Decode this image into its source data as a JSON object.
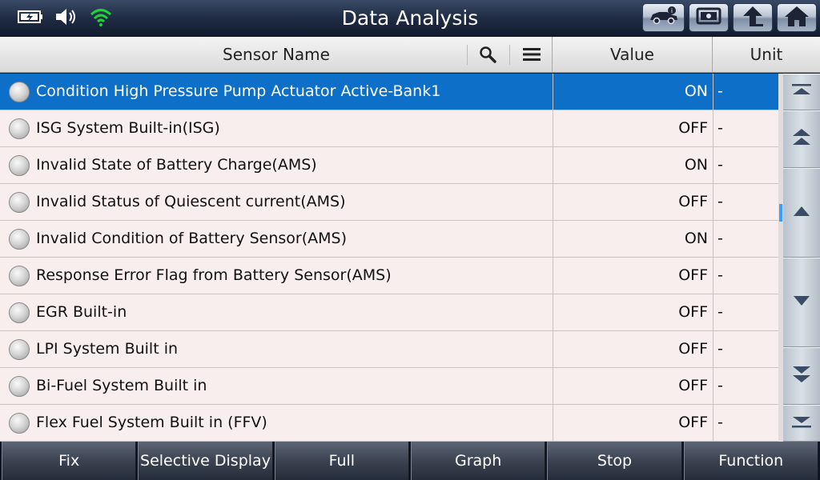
{
  "title": "Data Analysis",
  "status_icons": [
    "battery-icon",
    "speaker-icon",
    "wifi-icon"
  ],
  "nav_buttons": [
    "vehicle-info-icon",
    "screenshot-icon",
    "back-icon",
    "home-icon"
  ],
  "columns": {
    "name": "Sensor Name",
    "value": "Value",
    "unit": "Unit"
  },
  "rows": [
    {
      "name": "Condition High Pressure Pump Actuator Active-Bank1",
      "value": "ON",
      "unit": "-",
      "selected": true
    },
    {
      "name": "ISG System Built-in(ISG)",
      "value": "OFF",
      "unit": "-"
    },
    {
      "name": "Invalid State of Battery Charge(AMS)",
      "value": "ON",
      "unit": "-"
    },
    {
      "name": "Invalid Status of Quiescent current(AMS)",
      "value": "OFF",
      "unit": "-"
    },
    {
      "name": "Invalid Condition of Battery Sensor(AMS)",
      "value": "ON",
      "unit": "-"
    },
    {
      "name": "Response Error Flag from Battery Sensor(AMS)",
      "value": "OFF",
      "unit": "-"
    },
    {
      "name": "EGR Built-in",
      "value": "OFF",
      "unit": "-"
    },
    {
      "name": "LPI System Built in",
      "value": "OFF",
      "unit": "-"
    },
    {
      "name": "Bi-Fuel System Built in",
      "value": "OFF",
      "unit": "-"
    },
    {
      "name": "Flex Fuel System Built in (FFV)",
      "value": "OFF",
      "unit": "-"
    }
  ],
  "toolbar": {
    "fix": "Fix",
    "selective_display": "Selective Display",
    "full": "Full",
    "graph": "Graph",
    "stop": "Stop",
    "function": "Function"
  },
  "colors": {
    "selected_row": "#0d6fc8",
    "row_bg": "#f8eeee",
    "wifi": "#1fd33a"
  }
}
